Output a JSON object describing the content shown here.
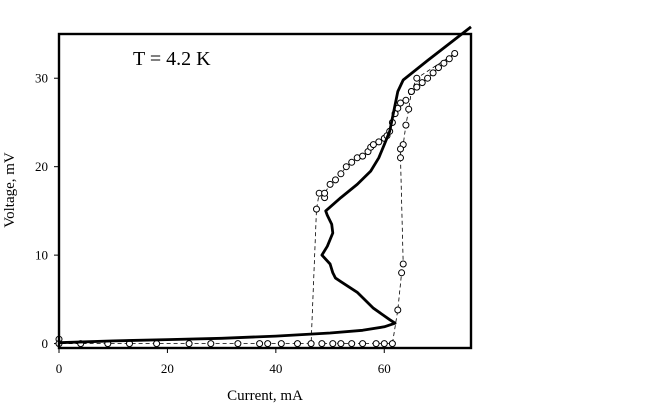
{
  "chart_data": {
    "type": "line",
    "xlabel": "Current, mA",
    "ylabel": "Voltage, mV",
    "annotation": "T = 4.2 K",
    "xlim": [
      0,
      76
    ],
    "ylim": [
      -0.5,
      35
    ],
    "x_ticks": [
      0,
      20,
      40,
      60
    ],
    "y_ticks": [
      0,
      10,
      20,
      30
    ],
    "grid": false,
    "series": [
      {
        "style": "solid-line",
        "color": "#000000",
        "points": [
          [
            0,
            0.1
          ],
          [
            5,
            0.2
          ],
          [
            10,
            0.3
          ],
          [
            20,
            0.45
          ],
          [
            30,
            0.6
          ],
          [
            40,
            0.85
          ],
          [
            50,
            1.2
          ],
          [
            56,
            1.5
          ],
          [
            60,
            1.9
          ],
          [
            62,
            2.3
          ],
          [
            61,
            2.7
          ],
          [
            58,
            4.0
          ],
          [
            55,
            5.8
          ],
          [
            52,
            7.0
          ],
          [
            51,
            7.4
          ],
          [
            50.5,
            8.0
          ],
          [
            50,
            9.0
          ],
          [
            48.5,
            10.0
          ],
          [
            49.5,
            11.0
          ],
          [
            50.5,
            12.5
          ],
          [
            50.3,
            13.5
          ],
          [
            49.5,
            14.5
          ],
          [
            49.2,
            15.0
          ],
          [
            52,
            16.5
          ],
          [
            55,
            18.0
          ],
          [
            57.5,
            19.5
          ],
          [
            59,
            21.0
          ],
          [
            60,
            22.5
          ],
          [
            61,
            24.0
          ],
          [
            61.5,
            25.5
          ],
          [
            62,
            27.0
          ],
          [
            62.5,
            28.5
          ],
          [
            63.5,
            29.8
          ],
          [
            68,
            32.0
          ],
          [
            76,
            35.8
          ]
        ]
      },
      {
        "style": "dashed-circles",
        "color": "#000000",
        "points": [
          [
            0,
            0.5
          ],
          [
            0,
            0
          ],
          [
            4,
            0
          ],
          [
            9,
            0
          ],
          [
            13,
            0
          ],
          [
            18,
            0
          ],
          [
            24,
            0
          ],
          [
            28,
            0
          ],
          [
            33,
            0
          ],
          [
            37,
            0
          ],
          [
            38.5,
            0
          ],
          [
            41,
            0
          ],
          [
            44,
            0
          ],
          [
            46.5,
            0
          ],
          [
            47.5,
            15.2
          ],
          [
            48,
            17.0
          ],
          [
            49,
            16.5
          ],
          [
            49,
            17.0
          ],
          [
            50,
            18.0
          ],
          [
            51,
            18.5
          ],
          [
            52,
            19.2
          ],
          [
            53,
            20.0
          ],
          [
            54,
            20.5
          ],
          [
            55,
            21.0
          ],
          [
            56,
            21.2
          ],
          [
            57,
            21.7
          ],
          [
            57.5,
            22.2
          ],
          [
            58,
            22.5
          ],
          [
            59,
            22.8
          ],
          [
            60,
            23.2
          ],
          [
            60.5,
            23.5
          ],
          [
            61,
            24.0
          ],
          [
            61.5,
            25.0
          ],
          [
            62,
            26.0
          ],
          [
            62.5,
            26.6
          ],
          [
            63,
            27.2
          ],
          [
            64,
            27.5
          ],
          [
            65,
            28.5
          ],
          [
            66,
            29.0
          ],
          [
            67,
            29.5
          ],
          [
            68,
            30.0
          ],
          [
            69,
            30.6
          ],
          [
            70,
            31.2
          ],
          [
            71,
            31.7
          ],
          [
            72,
            32.2
          ],
          [
            73,
            32.8
          ],
          [
            66,
            30.0
          ],
          [
            65,
            28.5
          ],
          [
            64.5,
            26.5
          ],
          [
            64,
            24.7
          ],
          [
            63.5,
            22.5
          ],
          [
            63,
            22.0
          ],
          [
            63,
            21.0
          ],
          [
            63.5,
            9.0
          ],
          [
            63.2,
            8.0
          ],
          [
            62.5,
            3.8
          ],
          [
            61.5,
            0
          ],
          [
            60,
            0
          ],
          [
            58.5,
            0
          ],
          [
            56,
            0
          ],
          [
            54,
            0
          ],
          [
            52,
            0
          ],
          [
            50.5,
            0
          ],
          [
            48.5,
            0
          ]
        ]
      }
    ]
  }
}
